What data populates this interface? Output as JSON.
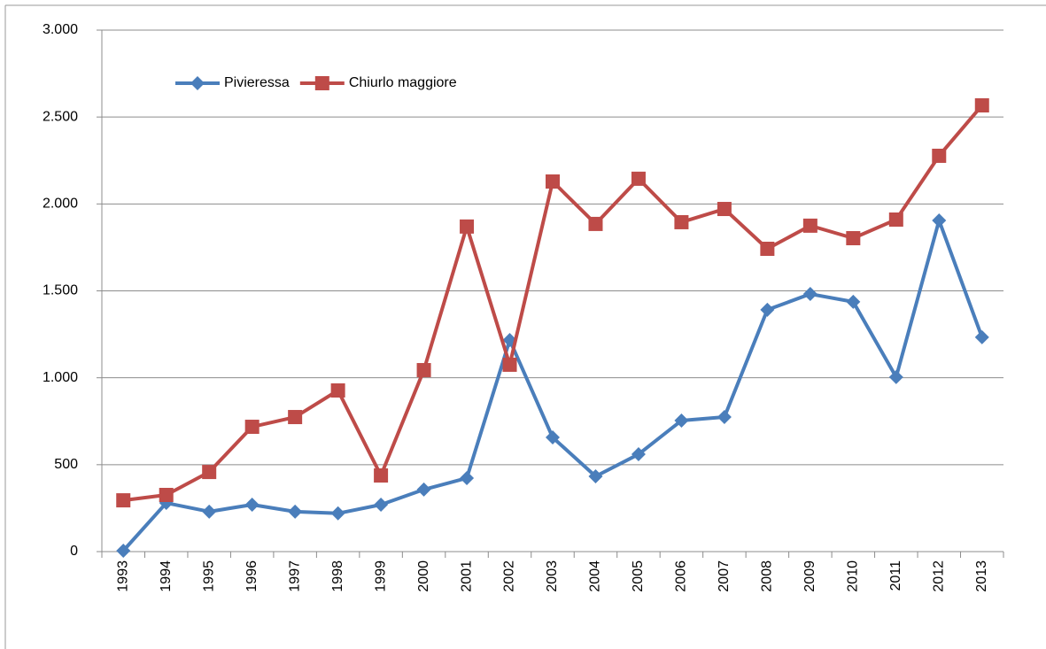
{
  "chart_data": {
    "type": "line",
    "categories": [
      "1993",
      "1994",
      "1995",
      "1996",
      "1997",
      "1998",
      "1999",
      "2000",
      "2001",
      "2002",
      "2003",
      "2004",
      "2005",
      "2006",
      "2007",
      "2008",
      "2009",
      "2010",
      "2011",
      "2012",
      "2013"
    ],
    "series": [
      {
        "name": "Pivieressa",
        "color": "#4a7ebb",
        "marker": "diamond",
        "values": [
          5,
          280,
          230,
          270,
          230,
          220,
          270,
          357,
          423,
          1217,
          657,
          433,
          560,
          754,
          774,
          1391,
          1482,
          1437,
          1004,
          1905,
          1233
        ]
      },
      {
        "name": "Chiurlo maggiore",
        "color": "#be4b48",
        "marker": "square",
        "values": [
          295,
          326,
          458,
          718,
          774,
          927,
          438,
          1044,
          1870,
          1075,
          2129,
          1885,
          2145,
          1895,
          1971,
          1742,
          1875,
          1803,
          1910,
          2277,
          2567
        ]
      }
    ],
    "ylim": [
      0,
      3000
    ],
    "yticks": [
      0,
      500,
      {
        "value": 1000,
        "label": "1.000"
      },
      {
        "value": 1500,
        "label": "1.500"
      },
      {
        "value": 2000,
        "label": "2.000"
      },
      {
        "value": 2500,
        "label": "2.500"
      },
      {
        "value": 3000,
        "label": "3.000"
      }
    ],
    "grid": true,
    "legend": "upper-left"
  }
}
